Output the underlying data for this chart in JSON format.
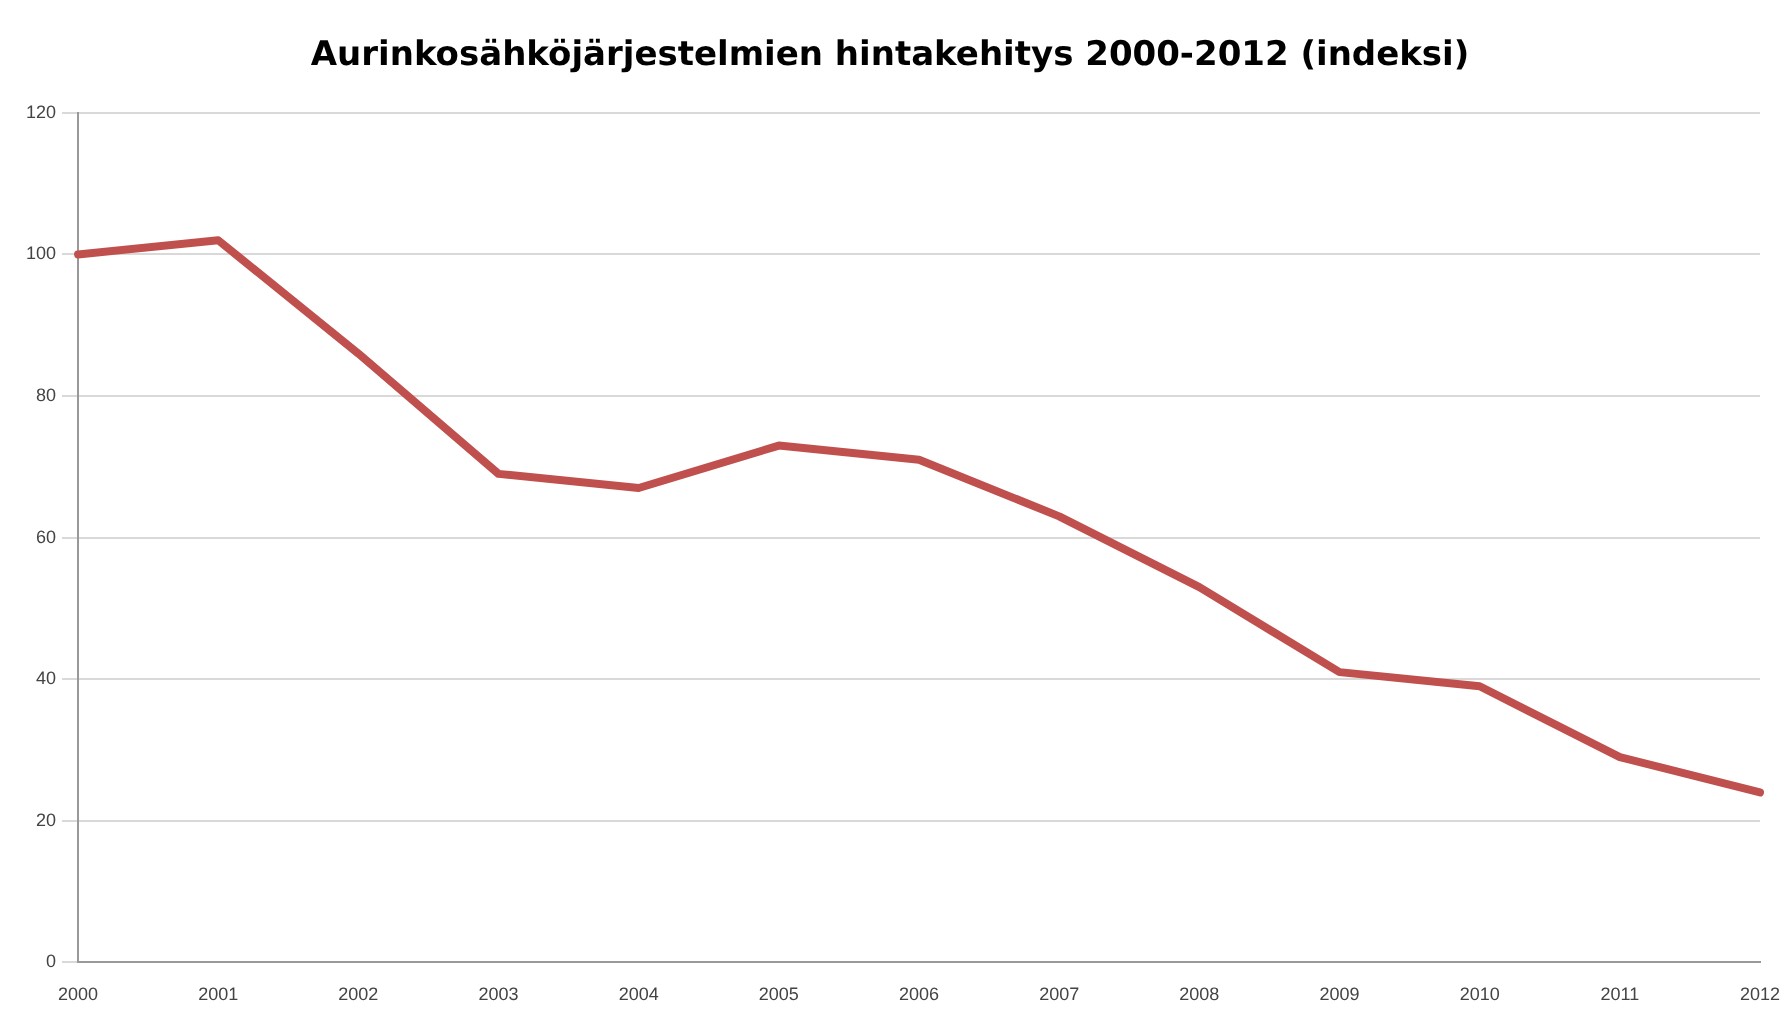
{
  "chart_data": {
    "type": "line",
    "title": "Aurinkosähköjärjestelmien hintakehitys 2000-2012 (indeksi)",
    "categories": [
      "2000",
      "2001",
      "2002",
      "2003",
      "2004",
      "2005",
      "2006",
      "2007",
      "2008",
      "2009",
      "2010",
      "2011",
      "2012"
    ],
    "series": [
      {
        "color": "#c0504d",
        "values": [
          100,
          102,
          86,
          69,
          67,
          73,
          71,
          63,
          53,
          41,
          39,
          29,
          24
        ]
      }
    ],
    "ylim": [
      0,
      120
    ],
    "yticks": [
      0,
      20,
      40,
      60,
      80,
      100,
      120
    ],
    "grid": "y",
    "legend": false,
    "marker": "none",
    "line_style": "solid"
  }
}
